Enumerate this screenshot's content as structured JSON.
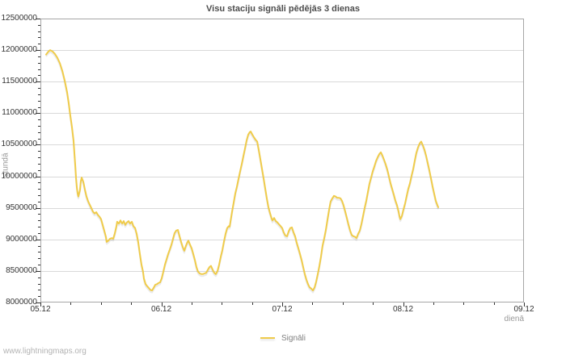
{
  "page": {
    "footer": "www.lightningmaps.org"
  },
  "colors": {
    "line": "#efcb4a",
    "grid": "#d9d9d9",
    "frame": "#a6a6a6",
    "tick": "#333333",
    "title_text": "#4d4d4d",
    "axis_unit_text": "#999999",
    "legend_text": "#808080",
    "footer_text": "#b3b3b3",
    "background": "#ffffff"
  },
  "chart_data": {
    "type": "line",
    "title": "Visu staciju signāli pēdējās 3 dienas",
    "xlabel": "dienā",
    "ylabel": "stundā",
    "xlim": [
      0,
      4
    ],
    "ylim": [
      8000000,
      12500000
    ],
    "x_tick_days": [
      0,
      1,
      2,
      3,
      4
    ],
    "x_tick_labels": [
      "05.12",
      "06.12",
      "07.12",
      "08.12",
      "09.12"
    ],
    "x_minor_step_days": 0.25,
    "y_tick_values": [
      8000000,
      8500000,
      9000000,
      9500000,
      10000000,
      10500000,
      11000000,
      11500000,
      12000000,
      12500000
    ],
    "y_minor_step": 100000,
    "grid": "horizontal-gridlines-only",
    "legend_position": "bottom-center",
    "series": [
      {
        "name": "Signāli",
        "color": "#efcb4a",
        "points": [
          [
            0.047,
            11930000
          ],
          [
            0.067,
            11980000
          ],
          [
            0.08,
            12000000
          ],
          [
            0.1,
            11980000
          ],
          [
            0.12,
            11940000
          ],
          [
            0.14,
            11880000
          ],
          [
            0.161,
            11790000
          ],
          [
            0.181,
            11670000
          ],
          [
            0.201,
            11520000
          ],
          [
            0.221,
            11330000
          ],
          [
            0.234,
            11160000
          ],
          [
            0.247,
            10970000
          ],
          [
            0.261,
            10780000
          ],
          [
            0.274,
            10560000
          ],
          [
            0.281,
            10370000
          ],
          [
            0.288,
            10170000
          ],
          [
            0.294,
            9980000
          ],
          [
            0.301,
            9830000
          ],
          [
            0.308,
            9730000
          ],
          [
            0.314,
            9680000
          ],
          [
            0.328,
            9790000
          ],
          [
            0.334,
            9920000
          ],
          [
            0.341,
            9980000
          ],
          [
            0.355,
            9910000
          ],
          [
            0.368,
            9790000
          ],
          [
            0.381,
            9680000
          ],
          [
            0.395,
            9600000
          ],
          [
            0.408,
            9550000
          ],
          [
            0.421,
            9500000
          ],
          [
            0.435,
            9440000
          ],
          [
            0.448,
            9410000
          ],
          [
            0.462,
            9430000
          ],
          [
            0.475,
            9390000
          ],
          [
            0.488,
            9360000
          ],
          [
            0.502,
            9320000
          ],
          [
            0.515,
            9230000
          ],
          [
            0.528,
            9140000
          ],
          [
            0.542,
            9040000
          ],
          [
            0.548,
            8960000
          ],
          [
            0.562,
            8980000
          ],
          [
            0.575,
            9010000
          ],
          [
            0.589,
            9020000
          ],
          [
            0.602,
            9010000
          ],
          [
            0.615,
            9090000
          ],
          [
            0.629,
            9210000
          ],
          [
            0.635,
            9280000
          ],
          [
            0.649,
            9250000
          ],
          [
            0.662,
            9300000
          ],
          [
            0.676,
            9250000
          ],
          [
            0.689,
            9290000
          ],
          [
            0.702,
            9230000
          ],
          [
            0.716,
            9270000
          ],
          [
            0.729,
            9290000
          ],
          [
            0.742,
            9250000
          ],
          [
            0.756,
            9280000
          ],
          [
            0.769,
            9210000
          ],
          [
            0.783,
            9180000
          ],
          [
            0.796,
            9090000
          ],
          [
            0.809,
            8960000
          ],
          [
            0.823,
            8770000
          ],
          [
            0.836,
            8600000
          ],
          [
            0.849,
            8490000
          ],
          [
            0.856,
            8380000
          ],
          [
            0.87,
            8290000
          ],
          [
            0.883,
            8260000
          ],
          [
            0.896,
            8230000
          ],
          [
            0.91,
            8200000
          ],
          [
            0.923,
            8190000
          ],
          [
            0.936,
            8230000
          ],
          [
            0.95,
            8280000
          ],
          [
            0.963,
            8290000
          ],
          [
            0.977,
            8310000
          ],
          [
            0.99,
            8320000
          ],
          [
            1.003,
            8380000
          ],
          [
            1.017,
            8490000
          ],
          [
            1.03,
            8600000
          ],
          [
            1.043,
            8680000
          ],
          [
            1.057,
            8770000
          ],
          [
            1.07,
            8840000
          ],
          [
            1.084,
            8920000
          ],
          [
            1.097,
            9010000
          ],
          [
            1.11,
            9100000
          ],
          [
            1.124,
            9140000
          ],
          [
            1.137,
            9150000
          ],
          [
            1.15,
            9060000
          ],
          [
            1.164,
            8960000
          ],
          [
            1.177,
            8880000
          ],
          [
            1.19,
            8820000
          ],
          [
            1.204,
            8900000
          ],
          [
            1.217,
            8960000
          ],
          [
            1.224,
            8980000
          ],
          [
            1.237,
            8920000
          ],
          [
            1.251,
            8860000
          ],
          [
            1.264,
            8770000
          ],
          [
            1.278,
            8670000
          ],
          [
            1.291,
            8560000
          ],
          [
            1.304,
            8490000
          ],
          [
            1.318,
            8460000
          ],
          [
            1.331,
            8450000
          ],
          [
            1.344,
            8450000
          ],
          [
            1.358,
            8460000
          ],
          [
            1.371,
            8470000
          ],
          [
            1.385,
            8520000
          ],
          [
            1.398,
            8560000
          ],
          [
            1.411,
            8580000
          ],
          [
            1.425,
            8520000
          ],
          [
            1.438,
            8470000
          ],
          [
            1.451,
            8450000
          ],
          [
            1.465,
            8500000
          ],
          [
            1.478,
            8600000
          ],
          [
            1.492,
            8730000
          ],
          [
            1.505,
            8830000
          ],
          [
            1.518,
            8960000
          ],
          [
            1.532,
            9090000
          ],
          [
            1.545,
            9180000
          ],
          [
            1.558,
            9210000
          ],
          [
            1.565,
            9200000
          ],
          [
            1.572,
            9280000
          ],
          [
            1.585,
            9440000
          ],
          [
            1.599,
            9590000
          ],
          [
            1.612,
            9730000
          ],
          [
            1.625,
            9830000
          ],
          [
            1.639,
            9960000
          ],
          [
            1.652,
            10080000
          ],
          [
            1.666,
            10200000
          ],
          [
            1.679,
            10320000
          ],
          [
            1.692,
            10440000
          ],
          [
            1.706,
            10570000
          ],
          [
            1.719,
            10660000
          ],
          [
            1.732,
            10700000
          ],
          [
            1.739,
            10710000
          ],
          [
            1.753,
            10660000
          ],
          [
            1.766,
            10620000
          ],
          [
            1.779,
            10580000
          ],
          [
            1.793,
            10550000
          ],
          [
            1.806,
            10420000
          ],
          [
            1.819,
            10280000
          ],
          [
            1.833,
            10120000
          ],
          [
            1.846,
            9970000
          ],
          [
            1.86,
            9800000
          ],
          [
            1.873,
            9650000
          ],
          [
            1.886,
            9510000
          ],
          [
            1.9,
            9410000
          ],
          [
            1.913,
            9330000
          ],
          [
            1.92,
            9300000
          ],
          [
            1.933,
            9340000
          ],
          [
            1.947,
            9290000
          ],
          [
            1.96,
            9270000
          ],
          [
            1.973,
            9240000
          ],
          [
            1.987,
            9210000
          ],
          [
            2.0,
            9180000
          ],
          [
            2.013,
            9110000
          ],
          [
            2.027,
            9060000
          ],
          [
            2.04,
            9050000
          ],
          [
            2.054,
            9130000
          ],
          [
            2.067,
            9180000
          ],
          [
            2.08,
            9190000
          ],
          [
            2.094,
            9110000
          ],
          [
            2.107,
            9050000
          ],
          [
            2.12,
            8950000
          ],
          [
            2.134,
            8860000
          ],
          [
            2.147,
            8770000
          ],
          [
            2.161,
            8670000
          ],
          [
            2.174,
            8560000
          ],
          [
            2.187,
            8450000
          ],
          [
            2.201,
            8360000
          ],
          [
            2.214,
            8290000
          ],
          [
            2.227,
            8240000
          ],
          [
            2.241,
            8220000
          ],
          [
            2.254,
            8190000
          ],
          [
            2.268,
            8240000
          ],
          [
            2.281,
            8330000
          ],
          [
            2.294,
            8450000
          ],
          [
            2.308,
            8580000
          ],
          [
            2.321,
            8730000
          ],
          [
            2.334,
            8900000
          ],
          [
            2.348,
            9020000
          ],
          [
            2.361,
            9150000
          ],
          [
            2.375,
            9320000
          ],
          [
            2.388,
            9470000
          ],
          [
            2.401,
            9600000
          ],
          [
            2.415,
            9650000
          ],
          [
            2.428,
            9690000
          ],
          [
            2.441,
            9680000
          ],
          [
            2.455,
            9660000
          ],
          [
            2.468,
            9660000
          ],
          [
            2.482,
            9650000
          ],
          [
            2.495,
            9610000
          ],
          [
            2.508,
            9540000
          ],
          [
            2.522,
            9440000
          ],
          [
            2.535,
            9340000
          ],
          [
            2.548,
            9240000
          ],
          [
            2.562,
            9140000
          ],
          [
            2.575,
            9070000
          ],
          [
            2.589,
            9050000
          ],
          [
            2.602,
            9040000
          ],
          [
            2.615,
            9020000
          ],
          [
            2.629,
            9090000
          ],
          [
            2.642,
            9140000
          ],
          [
            2.656,
            9250000
          ],
          [
            2.669,
            9370000
          ],
          [
            2.682,
            9500000
          ],
          [
            2.696,
            9620000
          ],
          [
            2.709,
            9750000
          ],
          [
            2.722,
            9880000
          ],
          [
            2.736,
            9980000
          ],
          [
            2.749,
            10080000
          ],
          [
            2.763,
            10160000
          ],
          [
            2.776,
            10240000
          ],
          [
            2.789,
            10300000
          ],
          [
            2.803,
            10350000
          ],
          [
            2.816,
            10380000
          ],
          [
            2.829,
            10330000
          ],
          [
            2.843,
            10260000
          ],
          [
            2.856,
            10190000
          ],
          [
            2.87,
            10100000
          ],
          [
            2.883,
            10000000
          ],
          [
            2.896,
            9890000
          ],
          [
            2.91,
            9800000
          ],
          [
            2.923,
            9710000
          ],
          [
            2.936,
            9620000
          ],
          [
            2.95,
            9540000
          ],
          [
            2.963,
            9440000
          ],
          [
            2.97,
            9370000
          ],
          [
            2.977,
            9320000
          ],
          [
            2.99,
            9370000
          ],
          [
            3.003,
            9470000
          ],
          [
            3.017,
            9570000
          ],
          [
            3.03,
            9690000
          ],
          [
            3.043,
            9800000
          ],
          [
            3.057,
            9890000
          ],
          [
            3.07,
            10010000
          ],
          [
            3.084,
            10120000
          ],
          [
            3.097,
            10250000
          ],
          [
            3.11,
            10370000
          ],
          [
            3.124,
            10460000
          ],
          [
            3.137,
            10520000
          ],
          [
            3.15,
            10550000
          ],
          [
            3.164,
            10490000
          ],
          [
            3.177,
            10420000
          ],
          [
            3.19,
            10330000
          ],
          [
            3.204,
            10210000
          ],
          [
            3.217,
            10100000
          ],
          [
            3.231,
            9970000
          ],
          [
            3.244,
            9840000
          ],
          [
            3.257,
            9730000
          ],
          [
            3.271,
            9610000
          ],
          [
            3.284,
            9540000
          ],
          [
            3.291,
            9510000
          ]
        ]
      }
    ]
  }
}
